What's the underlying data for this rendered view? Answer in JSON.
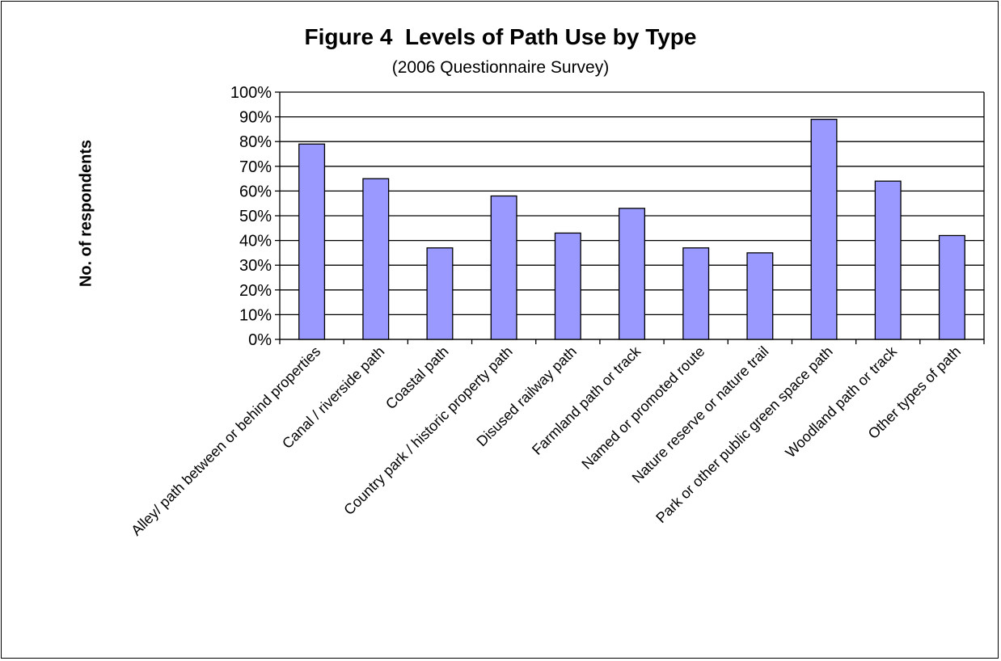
{
  "title": "Figure 4  Levels of Path Use by Type",
  "subtitle": "(2006 Questionnaire Survey)",
  "colors": {
    "bar": "#9999ff",
    "bar_edge": "#000000",
    "grid": "#000000"
  },
  "chart_data": {
    "type": "bar",
    "title": "Figure 4  Levels of Path Use by Type",
    "subtitle": "(2006 Questionnaire Survey)",
    "xlabel": "",
    "ylabel": "No. of respondents",
    "ylim": [
      0,
      100
    ],
    "yticks": [
      "0%",
      "10%",
      "20%",
      "30%",
      "40%",
      "50%",
      "60%",
      "70%",
      "80%",
      "90%",
      "100%"
    ],
    "grid": true,
    "categories": [
      "Alley/ path between or behind properties",
      "Canal / riverside path",
      "Coastal path",
      "Country park / historic property path",
      "Disused railway path",
      "Farmland path or track",
      "Named or promoted route",
      "Nature reserve or nature trail",
      "Park or other public green space path",
      "Woodland path or track",
      "Other types of path"
    ],
    "values": [
      79,
      65,
      37,
      58,
      43,
      53,
      37,
      35,
      89,
      64,
      42
    ]
  }
}
